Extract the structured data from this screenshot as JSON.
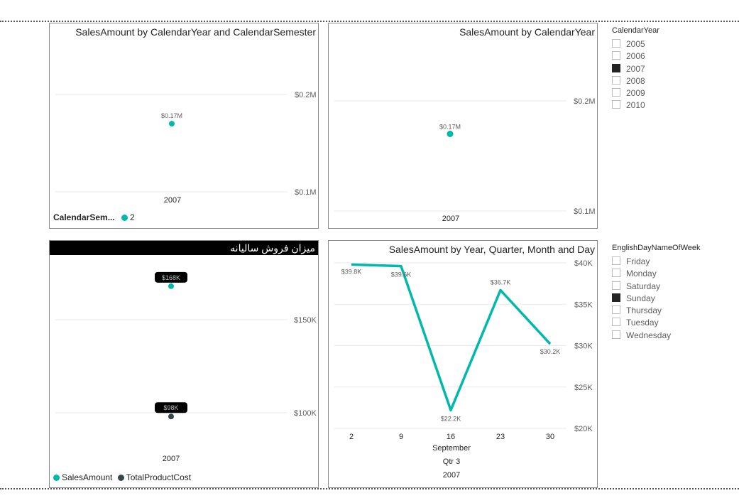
{
  "colors": {
    "teal": "#01B8AA",
    "dark": "#374649"
  },
  "chart1": {
    "title": "SalesAmount by CalendarYear and CalendarSemester",
    "y_ticks": [
      "$0.2M",
      "$0.1M"
    ],
    "category": "2007",
    "point_label": "$0.17M",
    "legend_title": "CalendarSem...",
    "legend_item": "2"
  },
  "chart2": {
    "title": "SalesAmount by CalendarYear",
    "y_ticks": [
      "$0.2M",
      "$0.1M"
    ],
    "category": "2007",
    "point_label": "$0.17M"
  },
  "chart3": {
    "title": "میزان فروش سالیانه",
    "y_ticks": [
      "$150K",
      "$100K"
    ],
    "category": "2007",
    "label_sales": "$168K",
    "label_cost": "$98K",
    "legend_sales": "SalesAmount",
    "legend_cost": "TotalProductCost"
  },
  "chart4": {
    "title": "SalesAmount by Year, Quarter, Month and Day",
    "y_ticks": [
      "$40K",
      "$35K",
      "$30K",
      "$25K",
      "$20K"
    ],
    "x_ticks": [
      "2",
      "9",
      "16",
      "23",
      "30"
    ],
    "month": "September",
    "quarter": "Qtr 3",
    "year": "2007",
    "labels": [
      "$39.8K",
      "$39.6K",
      "$22.2K",
      "$36.7K",
      "$30.2K"
    ]
  },
  "chart_data": [
    {
      "type": "scatter",
      "title": "SalesAmount by CalendarYear and CalendarSemester",
      "x": [
        "2007"
      ],
      "series": [
        {
          "name": "2",
          "values": [
            170000
          ]
        }
      ],
      "ylim": [
        100000,
        200000
      ],
      "legend": "bottom-left"
    },
    {
      "type": "scatter",
      "title": "SalesAmount by CalendarYear",
      "x": [
        "2007"
      ],
      "series": [
        {
          "values": [
            170000
          ]
        }
      ],
      "ylim": [
        100000,
        200000
      ]
    },
    {
      "type": "scatter",
      "title": "میزان فروش سالیانه",
      "x": [
        "2007"
      ],
      "series": [
        {
          "name": "SalesAmount",
          "values": [
            168000
          ]
        },
        {
          "name": "TotalProductCost",
          "values": [
            98000
          ]
        }
      ],
      "ylim": [
        87000,
        180000
      ],
      "legend": "bottom-left"
    },
    {
      "type": "line",
      "title": "SalesAmount by Year, Quarter, Month and Day",
      "x": [
        2,
        9,
        16,
        23,
        30
      ],
      "series": [
        {
          "values": [
            39800,
            39600,
            22200,
            36700,
            30200
          ]
        }
      ],
      "ylim": [
        20000,
        40000
      ],
      "xlabel": "September / Qtr 3 / 2007"
    }
  ],
  "slicer_year": {
    "header": "CalendarYear",
    "items": [
      "2005",
      "2006",
      "2007",
      "2008",
      "2009",
      "2010"
    ],
    "selected": "2007"
  },
  "slicer_day": {
    "header": "EnglishDayNameOfWeek",
    "items": [
      "Friday",
      "Monday",
      "Saturday",
      "Sunday",
      "Thursday",
      "Tuesday",
      "Wednesday"
    ],
    "selected": "Sunday"
  }
}
